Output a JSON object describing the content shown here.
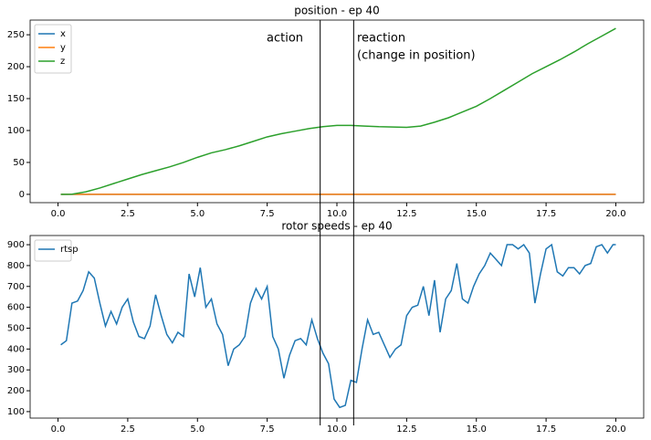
{
  "chart_data": [
    {
      "type": "line",
      "title": "position - ep 40",
      "x": [
        0.1,
        0.5,
        1.0,
        1.5,
        2.0,
        2.5,
        3.0,
        3.5,
        4.0,
        4.5,
        5.0,
        5.5,
        6.0,
        6.5,
        7.0,
        7.5,
        8.0,
        8.5,
        9.0,
        9.5,
        10.0,
        10.5,
        11.0,
        11.5,
        12.0,
        12.5,
        13.0,
        13.5,
        14.0,
        14.5,
        15.0,
        15.5,
        16.0,
        16.5,
        17.0,
        17.5,
        18.0,
        18.5,
        19.0,
        19.5,
        20.0
      ],
      "series": [
        {
          "name": "x",
          "color": "#1f77b4",
          "values": [
            0,
            0,
            0,
            0,
            0,
            0,
            0,
            0,
            0,
            0,
            0,
            0,
            0,
            0,
            0,
            0,
            0,
            0,
            0,
            0,
            0,
            0,
            0,
            0,
            0,
            0,
            0,
            0,
            0,
            0,
            0,
            0,
            0,
            0,
            0,
            0,
            0,
            0,
            0,
            0,
            0
          ]
        },
        {
          "name": "y",
          "color": "#ff7f0e",
          "values": [
            0,
            0,
            0,
            0,
            0,
            0,
            0,
            0,
            0,
            0,
            0,
            0,
            0,
            0,
            0,
            0,
            0,
            0,
            0,
            0,
            0,
            0,
            0,
            0,
            0,
            0,
            0,
            0,
            0,
            0,
            0,
            0,
            0,
            0,
            0,
            0,
            0,
            0,
            0,
            0,
            0
          ]
        },
        {
          "name": "z",
          "color": "#2ca02c",
          "values": [
            0,
            0.3,
            4,
            10,
            17,
            24,
            31,
            37,
            43,
            50,
            58,
            65,
            70,
            76,
            83,
            90,
            95,
            99,
            103,
            106,
            108,
            108,
            107,
            106,
            105.5,
            105,
            107,
            113,
            120,
            129,
            138,
            150,
            163,
            176,
            189,
            200,
            211,
            223,
            236,
            248,
            260
          ]
        }
      ],
      "xlim": [
        -1.0,
        21.0
      ],
      "xticks": [
        {
          "value": 0,
          "label": "0.0"
        },
        2.5,
        {
          "value": 5,
          "label": "5.0"
        },
        7.5,
        {
          "value": 10,
          "label": "10.0"
        },
        12.5,
        {
          "value": 15,
          "label": "15.0"
        },
        17.5,
        {
          "value": 20,
          "label": "20.0"
        }
      ],
      "ylim": [
        -13,
        273
      ],
      "yticks": [
        0,
        50,
        100,
        150,
        200,
        250
      ],
      "legend": "upper left",
      "vlines": [
        9.4,
        10.6
      ],
      "annotations": [
        "action",
        "reaction",
        "(change in position)"
      ]
    },
    {
      "type": "line",
      "title": "rotor speeds - ep 40",
      "x": [
        0.1,
        0.3,
        0.5,
        0.7,
        0.9,
        1.1,
        1.3,
        1.5,
        1.7,
        1.9,
        2.1,
        2.3,
        2.5,
        2.7,
        2.9,
        3.1,
        3.3,
        3.5,
        3.7,
        3.9,
        4.1,
        4.3,
        4.5,
        4.7,
        4.9,
        5.1,
        5.3,
        5.5,
        5.7,
        5.9,
        6.1,
        6.3,
        6.5,
        6.7,
        6.9,
        7.1,
        7.3,
        7.5,
        7.7,
        7.9,
        8.1,
        8.3,
        8.5,
        8.7,
        8.9,
        9.1,
        9.3,
        9.5,
        9.7,
        9.9,
        10.1,
        10.3,
        10.5,
        10.7,
        10.9,
        11.1,
        11.3,
        11.5,
        11.7,
        11.9,
        12.1,
        12.3,
        12.5,
        12.7,
        12.9,
        13.1,
        13.3,
        13.5,
        13.7,
        13.9,
        14.1,
        14.3,
        14.5,
        14.7,
        14.9,
        15.1,
        15.3,
        15.5,
        15.7,
        15.9,
        16.1,
        16.3,
        16.5,
        16.7,
        16.9,
        17.1,
        17.3,
        17.5,
        17.7,
        17.9,
        18.1,
        18.3,
        18.5,
        18.7,
        18.9,
        19.1,
        19.3,
        19.5,
        19.7,
        19.9,
        20.0
      ],
      "series": [
        {
          "name": "rtsp",
          "color": "#1f77b4",
          "values": [
            420,
            440,
            620,
            630,
            680,
            770,
            740,
            620,
            510,
            580,
            520,
            600,
            640,
            530,
            460,
            450,
            510,
            660,
            560,
            470,
            430,
            480,
            460,
            760,
            650,
            790,
            600,
            640,
            520,
            470,
            320,
            400,
            420,
            460,
            620,
            690,
            640,
            700,
            460,
            400,
            260,
            370,
            440,
            450,
            420,
            540,
            450,
            380,
            330,
            160,
            120,
            130,
            250,
            240,
            400,
            540,
            470,
            480,
            420,
            360,
            400,
            420,
            560,
            600,
            610,
            700,
            560,
            730,
            480,
            640,
            680,
            810,
            640,
            620,
            700,
            760,
            800,
            860,
            830,
            800,
            900,
            900,
            880,
            900,
            860,
            620,
            760,
            880,
            900,
            770,
            750,
            790,
            790,
            760,
            800,
            810,
            890,
            900,
            860,
            900,
            900
          ]
        }
      ],
      "xlim": [
        -1.0,
        21.0
      ],
      "xticks": [
        {
          "value": 0,
          "label": "0.0"
        },
        2.5,
        {
          "value": 5,
          "label": "5.0"
        },
        7.5,
        {
          "value": 10,
          "label": "10.0"
        },
        12.5,
        {
          "value": 15,
          "label": "15.0"
        },
        17.5,
        {
          "value": 20,
          "label": "20.0"
        }
      ],
      "ylim": [
        69,
        944
      ],
      "yticks": [
        100,
        200,
        300,
        400,
        500,
        600,
        700,
        800,
        900
      ],
      "legend": "upper left"
    }
  ]
}
